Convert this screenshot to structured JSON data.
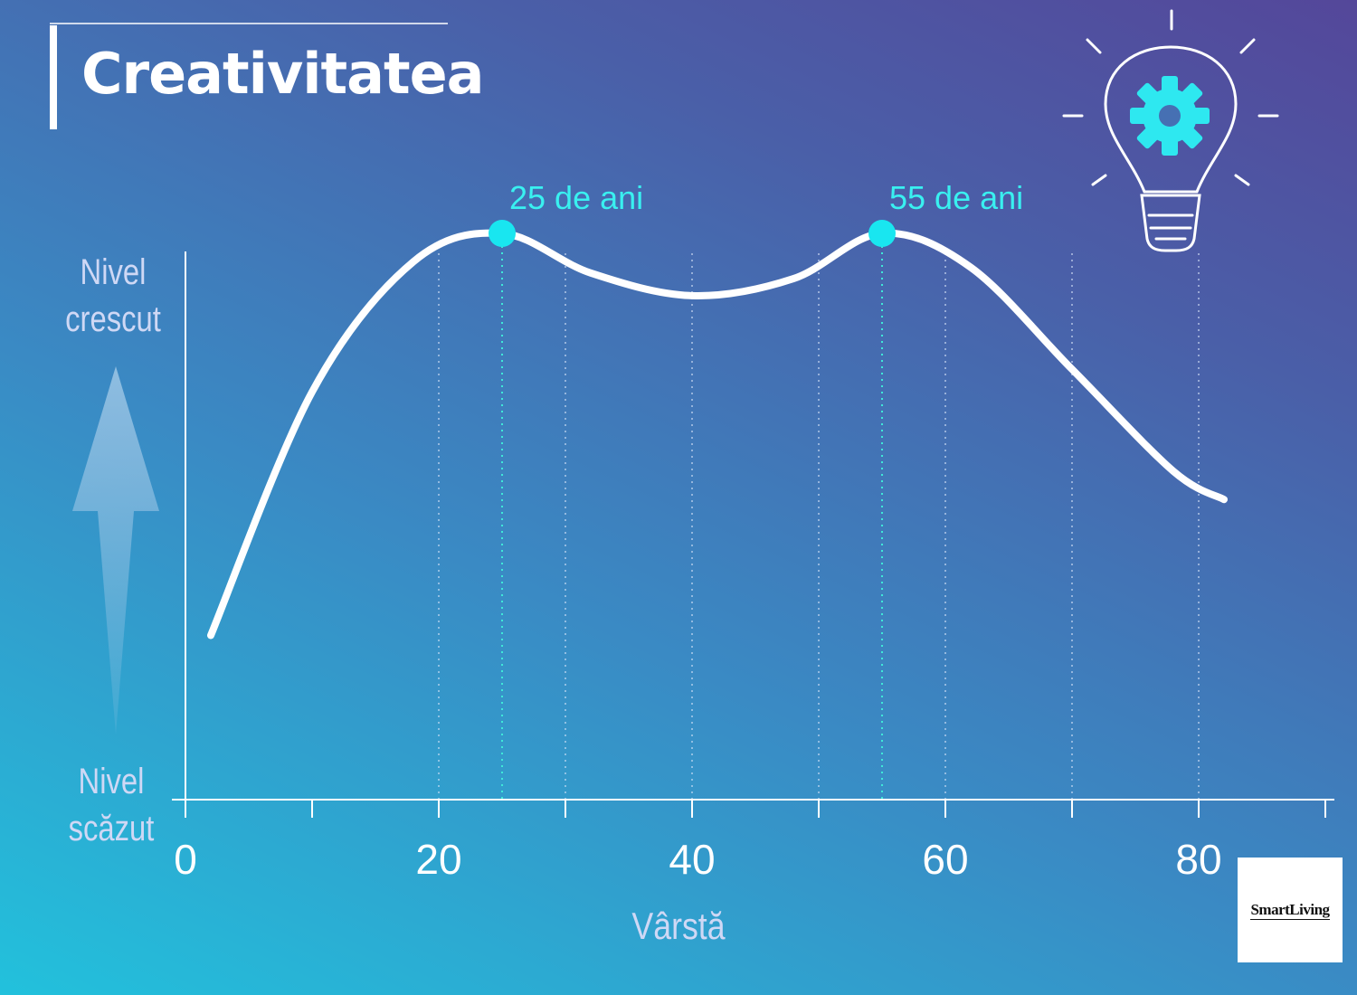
{
  "title": "Creativitatea",
  "y_axis": {
    "high_label_1": "Nivel",
    "high_label_2": "crescut",
    "low_label_1": "Nivel",
    "low_label_2": "scăzut"
  },
  "x_axis": {
    "label": "Vârstă",
    "ticks": [
      "0",
      "20",
      "40",
      "60",
      "80"
    ]
  },
  "logo": "SmartLiving",
  "colors": {
    "curve": "#ffffff",
    "peak": "#19e6f0",
    "grid": "#d8e4f8",
    "peak_grid": "#3fe8d8"
  },
  "icons": [
    "lightbulb-gear-icon",
    "up-arrow-icon"
  ],
  "chart_data": {
    "type": "line",
    "title": "Creativitatea",
    "xlabel": "Vârstă",
    "ylabel": "",
    "xlim": [
      0,
      90
    ],
    "ylim": [
      0,
      1
    ],
    "x_ticks": [
      0,
      20,
      40,
      60,
      80
    ],
    "y_tick_labels": [
      "Nivel scăzut",
      "Nivel crescut"
    ],
    "grid": "dotted vertical lines",
    "series": [
      {
        "x": [
          2,
          10,
          18,
          25,
          32,
          40,
          48,
          55,
          62,
          70,
          78,
          82
        ],
        "y": [
          0.29,
          0.72,
          0.95,
          1.0,
          0.93,
          0.89,
          0.92,
          1.0,
          0.94,
          0.76,
          0.58,
          0.53
        ]
      }
    ],
    "annotations": [
      {
        "x": 25,
        "y": 1.0,
        "text": "25 de ani"
      },
      {
        "x": 55,
        "y": 1.0,
        "text": "55 de ani"
      }
    ]
  }
}
